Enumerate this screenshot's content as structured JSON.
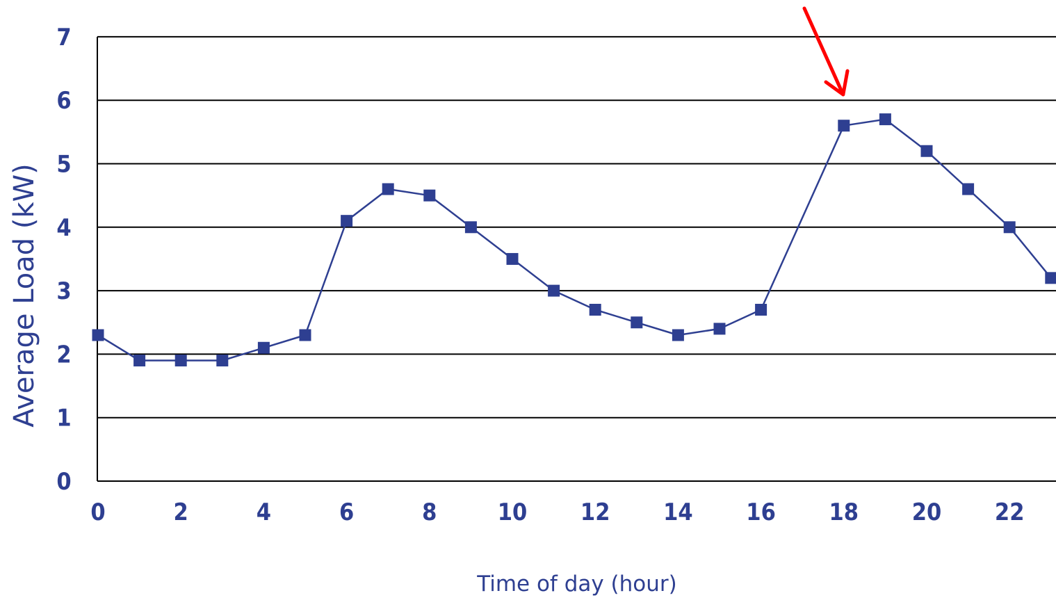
{
  "chart_data": {
    "type": "line",
    "title": "",
    "xlabel": "Time of day (hour)",
    "ylabel": "Average Load (kW)",
    "x_ticks": [
      "0",
      "2",
      "4",
      "6",
      "8",
      "10",
      "12",
      "14",
      "16",
      "18",
      "20",
      "22"
    ],
    "y_ticks": [
      "0",
      "1",
      "2",
      "3",
      "4",
      "5",
      "6",
      "7"
    ],
    "xlim": [
      0,
      23
    ],
    "ylim": [
      0,
      7
    ],
    "grid": "horizontal",
    "series": [
      {
        "marker": "square",
        "x": [
          0,
          1,
          2,
          3,
          4,
          5,
          6,
          7,
          8,
          9,
          10,
          11,
          12,
          13,
          14,
          15,
          16,
          17,
          18,
          19,
          20,
          21,
          22,
          23
        ],
        "values": [
          2.3,
          1.9,
          1.9,
          1.9,
          2.1,
          2.3,
          4.1,
          4.6,
          4.5,
          4.0,
          3.5,
          3.0,
          2.7,
          2.5,
          2.3,
          2.4,
          2.7,
          null,
          5.6,
          5.7,
          5.2,
          4.6,
          4.0,
          3.2
        ],
        "color": "#2e3f91"
      }
    ],
    "annotation": {
      "type": "arrow",
      "points_to_x": 18,
      "color": "#ff0000"
    },
    "colors": {
      "series": "#2e3f91",
      "axis_text": "#2e3f91",
      "grid": "#000000",
      "arrow": "#ff0000"
    }
  }
}
